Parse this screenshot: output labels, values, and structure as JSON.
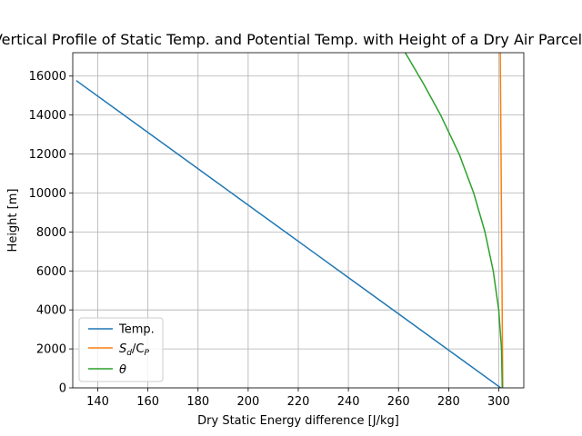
{
  "chart_data": {
    "type": "line",
    "title": "Vertical Profile of Static Temp. and Potential Temp. with Height of a Dry Air Parcel",
    "xlabel": "Dry Static Energy difference [J/kg]",
    "ylabel": "Height [m]",
    "xlim": [
      130,
      310
    ],
    "ylim": [
      0,
      17200
    ],
    "xticks": [
      140,
      160,
      180,
      200,
      220,
      240,
      260,
      280,
      300
    ],
    "xtick_labels": [
      "140",
      "160",
      "180",
      "200",
      "220",
      "240",
      "260",
      "280",
      "300"
    ],
    "yticks": [
      0,
      2000,
      4000,
      6000,
      8000,
      10000,
      12000,
      14000,
      16000
    ],
    "ytick_labels": [
      "0",
      "2000",
      "4000",
      "6000",
      "8000",
      "10000",
      "12000",
      "14000",
      "16000"
    ],
    "grid": true,
    "legend_position": "lower-left",
    "series": [
      {
        "name": "Temp.",
        "legend_label": "Temp.",
        "color": "#1f77b4",
        "x": [
          300.8,
          263.2,
          225.6,
          188.0,
          150.4,
          131.6
        ],
        "y": [
          0,
          3500,
          7000,
          10500,
          14000,
          15750
        ]
      },
      {
        "name": "S_d/C_P",
        "legend_label_main": "S",
        "legend_label_sub1": "d",
        "legend_label_mid": "/C",
        "legend_label_sub2": "P",
        "color": "#ff7f0e",
        "x": [
          301.6,
          301.4,
          301.2,
          301.0,
          300.8,
          300.6
        ],
        "y": [
          0,
          3500,
          7000,
          10500,
          14000,
          17200
        ]
      },
      {
        "name": "θ",
        "legend_label": "θ",
        "color": "#2ca02c",
        "x": [
          301.4,
          301.1,
          300.0,
          297.8,
          294.5,
          290.0,
          284.2,
          276.8,
          270.0,
          262.7
        ],
        "y": [
          0,
          2000,
          4000,
          6000,
          8000,
          10000,
          12000,
          14000,
          15600,
          17200
        ]
      }
    ]
  }
}
